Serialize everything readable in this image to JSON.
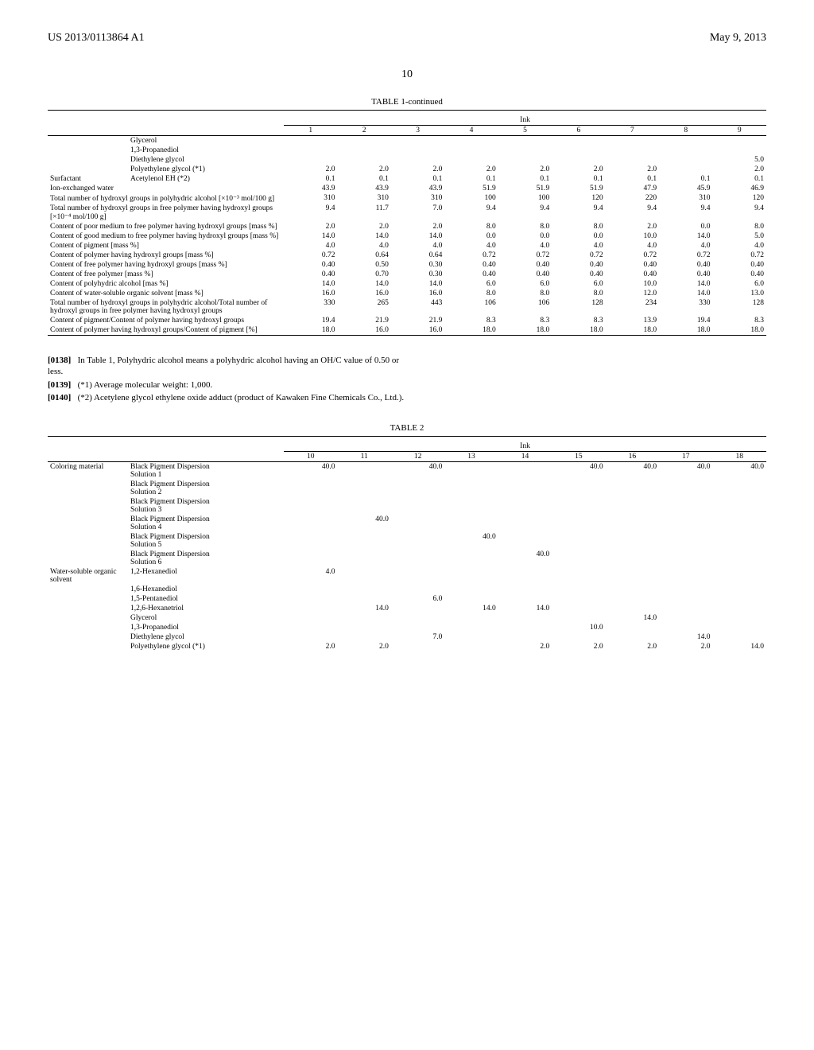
{
  "header": {
    "left": "US 2013/0113864 A1",
    "right": "May 9, 2013",
    "page": "10"
  },
  "table1": {
    "caption": "TABLE 1-continued",
    "ink_header": "Ink",
    "cols": [
      "1",
      "2",
      "3",
      "4",
      "5",
      "6",
      "7",
      "8",
      "9"
    ],
    "rows": [
      {
        "cat": "",
        "label": "Glycerol",
        "v": [
          "",
          "",
          "",
          "",
          "",
          "",
          "",
          "",
          ""
        ]
      },
      {
        "cat": "",
        "label": "1,3-Propanediol",
        "v": [
          "",
          "",
          "",
          "",
          "",
          "",
          "",
          "",
          ""
        ]
      },
      {
        "cat": "",
        "label": "Diethylene glycol",
        "v": [
          "",
          "",
          "",
          "",
          "",
          "",
          "",
          "",
          "5.0"
        ]
      },
      {
        "cat": "",
        "label": "Polyethylene glycol (*1)",
        "v": [
          "2.0",
          "2.0",
          "2.0",
          "2.0",
          "2.0",
          "2.0",
          "2.0",
          "",
          "2.0"
        ]
      },
      {
        "cat": "Surfactant",
        "label": "Acetylenol EH (*2)",
        "v": [
          "0.1",
          "0.1",
          "0.1",
          "0.1",
          "0.1",
          "0.1",
          "0.1",
          "0.1",
          "0.1"
        ]
      },
      {
        "cat": "Ion-exchanged water",
        "label": "",
        "v": [
          "43.9",
          "43.9",
          "43.9",
          "51.9",
          "51.9",
          "51.9",
          "47.9",
          "45.9",
          "46.9"
        ],
        "span": true
      },
      {
        "cat": "Total number of hydroxyl groups in polyhydric alcohol [×10⁻³ mol/100 g]",
        "label": "",
        "v": [
          "310",
          "310",
          "310",
          "100",
          "100",
          "120",
          "220",
          "310",
          "120"
        ],
        "span": true
      },
      {
        "cat": "Total number of hydroxyl groups in free polymer having hydroxyl groups [×10⁻⁴ mol/100 g]",
        "label": "",
        "v": [
          "9.4",
          "11.7",
          "7.0",
          "9.4",
          "9.4",
          "9.4",
          "9.4",
          "9.4",
          "9.4"
        ],
        "span": true
      },
      {
        "cat": "Content of poor medium to free polymer having hydroxyl groups [mass %]",
        "label": "",
        "v": [
          "2.0",
          "2.0",
          "2.0",
          "8.0",
          "8.0",
          "8.0",
          "2.0",
          "0.0",
          "8.0"
        ],
        "span": true
      },
      {
        "cat": "Content of good medium to free polymer having hydroxyl groups [mass %]",
        "label": "",
        "v": [
          "14.0",
          "14.0",
          "14.0",
          "0.0",
          "0.0",
          "0.0",
          "10.0",
          "14.0",
          "5.0"
        ],
        "span": true
      },
      {
        "cat": "Content of pigment [mass %]",
        "label": "",
        "v": [
          "4.0",
          "4.0",
          "4.0",
          "4.0",
          "4.0",
          "4.0",
          "4.0",
          "4.0",
          "4.0"
        ],
        "span": true
      },
      {
        "cat": "Content of polymer having hydroxyl groups [mass %]",
        "label": "",
        "v": [
          "0.72",
          "0.64",
          "0.64",
          "0.72",
          "0.72",
          "0.72",
          "0.72",
          "0.72",
          "0.72"
        ],
        "span": true
      },
      {
        "cat": "Content of free polymer having hydroxyl groups [mass %]",
        "label": "",
        "v": [
          "0.40",
          "0.50",
          "0.30",
          "0.40",
          "0.40",
          "0.40",
          "0.40",
          "0.40",
          "0.40"
        ],
        "span": true
      },
      {
        "cat": "Content of free polymer [mass %]",
        "label": "",
        "v": [
          "0.40",
          "0.70",
          "0.30",
          "0.40",
          "0.40",
          "0.40",
          "0.40",
          "0.40",
          "0.40"
        ],
        "span": true
      },
      {
        "cat": "Content of polyhydric alcohol [mas %]",
        "label": "",
        "v": [
          "14.0",
          "14.0",
          "14.0",
          "6.0",
          "6.0",
          "6.0",
          "10.0",
          "14.0",
          "6.0"
        ],
        "span": true
      },
      {
        "cat": "Content of water-soluble organic solvent [mass %]",
        "label": "",
        "v": [
          "16.0",
          "16.0",
          "16.0",
          "8.0",
          "8.0",
          "8.0",
          "12.0",
          "14.0",
          "13.0"
        ],
        "span": true
      },
      {
        "cat": "Total number of hydroxyl groups in polyhydric alcohol/Total number of hydroxyl groups in free polymer having hydroxyl groups",
        "label": "",
        "v": [
          "330",
          "265",
          "443",
          "106",
          "106",
          "128",
          "234",
          "330",
          "128"
        ],
        "span": true
      },
      {
        "cat": "Content of pigment/Content of polymer having hydroxyl groups",
        "label": "",
        "v": [
          "19.4",
          "21.9",
          "21.9",
          "8.3",
          "8.3",
          "8.3",
          "13.9",
          "19.4",
          "8.3"
        ],
        "span": true
      },
      {
        "cat": "Content of polymer having hydroxyl groups/Content of pigment [%]",
        "label": "",
        "v": [
          "18.0",
          "16.0",
          "16.0",
          "18.0",
          "18.0",
          "18.0",
          "18.0",
          "18.0",
          "18.0"
        ],
        "span": true
      }
    ]
  },
  "notes": {
    "p1": {
      "num": "[0138]",
      "text": "In Table 1, Polyhydric alcohol means a polyhydric alcohol having an OH/C value of 0.50 or less."
    },
    "p2": {
      "num": "[0139]",
      "text": "(*1) Average molecular weight: 1,000."
    },
    "p3": {
      "num": "[0140]",
      "text": "(*2) Acetylene glycol ethylene oxide adduct (product of Kawaken Fine Chemicals Co., Ltd.)."
    }
  },
  "table2": {
    "caption": "TABLE 2",
    "ink_header": "Ink",
    "cols": [
      "10",
      "11",
      "12",
      "13",
      "14",
      "15",
      "16",
      "17",
      "18"
    ],
    "groups": [
      {
        "category": "Coloring material",
        "items": [
          {
            "label": "Black Pigment Dispersion Solution 1",
            "v": [
              "40.0",
              "",
              "40.0",
              "",
              "",
              "40.0",
              "40.0",
              "40.0",
              "40.0"
            ]
          },
          {
            "label": "Black Pigment Dispersion Solution 2",
            "v": [
              "",
              "",
              "",
              "",
              "",
              "",
              "",
              "",
              ""
            ]
          },
          {
            "label": "Black Pigment Dispersion Solution 3",
            "v": [
              "",
              "",
              "",
              "",
              "",
              "",
              "",
              "",
              ""
            ]
          },
          {
            "label": "Black Pigment Dispersion Solution 4",
            "v": [
              "",
              "40.0",
              "",
              "",
              "",
              "",
              "",
              "",
              ""
            ]
          },
          {
            "label": "Black Pigment Dispersion Solution 5",
            "v": [
              "",
              "",
              "",
              "40.0",
              "",
              "",
              "",
              "",
              ""
            ]
          },
          {
            "label": "Black Pigment Dispersion Solution 6",
            "v": [
              "",
              "",
              "",
              "",
              "40.0",
              "",
              "",
              "",
              ""
            ]
          }
        ]
      },
      {
        "category": "Water-soluble organic solvent",
        "items": [
          {
            "label": "1,2-Hexanediol",
            "v": [
              "4.0",
              "",
              "",
              "",
              "",
              "",
              "",
              "",
              ""
            ]
          },
          {
            "label": "1,6-Hexanediol",
            "v": [
              "",
              "",
              "",
              "",
              "",
              "",
              "",
              "",
              ""
            ]
          },
          {
            "label": "1,5-Pentanediol",
            "v": [
              "",
              "",
              "6.0",
              "",
              "",
              "",
              "",
              "",
              ""
            ]
          },
          {
            "label": "1,2,6-Hexanetriol",
            "v": [
              "",
              "14.0",
              "",
              "14.0",
              "14.0",
              "",
              "",
              "",
              ""
            ]
          },
          {
            "label": "Glycerol",
            "v": [
              "",
              "",
              "",
              "",
              "",
              "",
              "14.0",
              "",
              ""
            ]
          },
          {
            "label": "1,3-Propanediol",
            "v": [
              "",
              "",
              "",
              "",
              "",
              "10.0",
              "",
              "",
              ""
            ]
          },
          {
            "label": "Diethylene glycol",
            "v": [
              "",
              "",
              "7.0",
              "",
              "",
              "",
              "",
              "14.0",
              ""
            ]
          },
          {
            "label": "Polyethylene glycol (*1)",
            "v": [
              "2.0",
              "2.0",
              "",
              "",
              "2.0",
              "2.0",
              "2.0",
              "2.0",
              "14.0"
            ]
          }
        ]
      }
    ]
  }
}
